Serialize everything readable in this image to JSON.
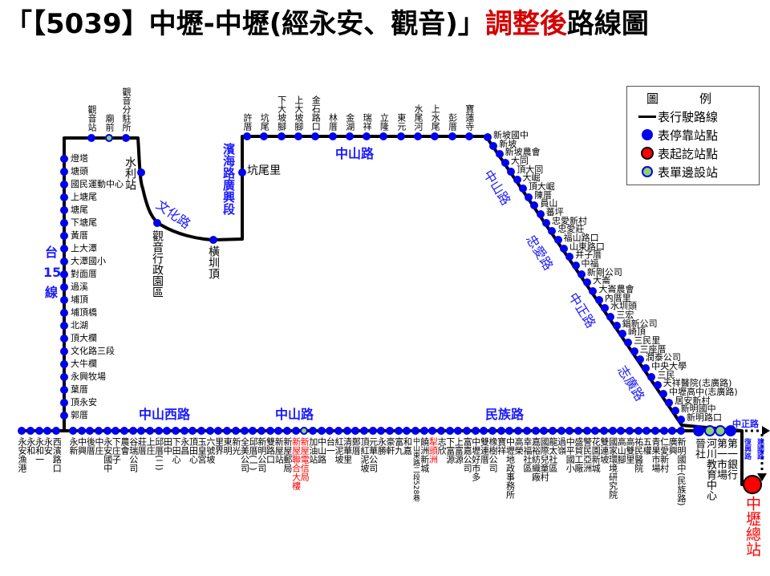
{
  "title": {
    "prefix": "「【5039】中壢-中壢(經永安、觀音)」",
    "highlight": "調整後",
    "suffix": "路線圖"
  },
  "colors": {
    "stop": "#0000ee",
    "terminal": "#ff0000",
    "one_side": "#8fd16a",
    "road_label": "#1a1aff",
    "highlight": "#d40000",
    "line": "#000000"
  },
  "legend": {
    "title_a": "圖",
    "title_b": "例",
    "items": [
      {
        "symbol": "route-line",
        "label": "表行駛路線"
      },
      {
        "symbol": "stop-dot",
        "label": "表停靠站點"
      },
      {
        "symbol": "terminal-dot",
        "label": "表起訖站點"
      },
      {
        "symbol": "one-side-dot",
        "label": "表單邊設站"
      }
    ]
  },
  "roads": {
    "tai15": [
      "台",
      "15",
      "線"
    ],
    "wenhua": "文化路",
    "binhai": "濱海路廣興段",
    "zhongshan_top": "中山路",
    "zhongshan_diag": "中山路",
    "zhongai": "忠愛路",
    "zhongzheng_diag": "中正路",
    "zhiguang": "志廣路",
    "zhongshan_west": "中山西路",
    "zhongshan_bottom": "中山路",
    "minzu": "民族路",
    "zhongzheng_end": "中正路",
    "fuxing": "復興路",
    "jianguo": "建國路"
  },
  "stops": {
    "top_left": [
      {
        "name": "觀音站"
      },
      {
        "name": "廟前",
        "type": "one-side"
      },
      {
        "name": "觀音分駐所"
      }
    ],
    "curve": [
      {
        "name": "水利站"
      },
      {
        "name": "觀音行政園區"
      },
      {
        "name": "橫圳頂"
      },
      {
        "name": "坑尾里"
      }
    ],
    "left_vertical": [
      {
        "name": "燈塔"
      },
      {
        "name": "塘頭"
      },
      {
        "name": "國民運動中心"
      },
      {
        "name": "上塘尾"
      },
      {
        "name": "塘尾"
      },
      {
        "name": "下塘尾"
      },
      {
        "name": "黃厝"
      },
      {
        "name": "上大潭"
      },
      {
        "name": "大潭國小"
      },
      {
        "name": "對面厝"
      },
      {
        "name": "過溪"
      },
      {
        "name": "埔頂"
      },
      {
        "name": "埔頂橋"
      },
      {
        "name": "北湖"
      },
      {
        "name": "頂大欄"
      },
      {
        "name": "文化路三段"
      },
      {
        "name": "大牛欄"
      },
      {
        "name": "永興牧場"
      },
      {
        "name": "葉厝"
      },
      {
        "name": "頂永安"
      },
      {
        "name": "郭厝"
      }
    ],
    "top": [
      {
        "name": "許厝"
      },
      {
        "name": "坑尾"
      },
      {
        "name": "下大坡腳"
      },
      {
        "name": "上大坡腳"
      },
      {
        "name": "金石路口"
      },
      {
        "name": "林厝"
      },
      {
        "name": "金湖"
      },
      {
        "name": "瑞祥"
      },
      {
        "name": "立隆"
      },
      {
        "name": "東元"
      },
      {
        "name": "水尾河"
      },
      {
        "name": "上水尾"
      },
      {
        "name": "彭厝"
      },
      {
        "name": "寶蓮寺"
      }
    ],
    "diagonal": [
      {
        "name": "新坡國中"
      },
      {
        "name": "新坡"
      },
      {
        "name": "新坡農會"
      },
      {
        "name": "大同"
      },
      {
        "name": "頂大同"
      },
      {
        "name": "大崛"
      },
      {
        "name": "頂大崛"
      },
      {
        "name": "陳厝"
      },
      {
        "name": "員山"
      },
      {
        "name": "蕃坪"
      },
      {
        "name": "忠愛新村"
      },
      {
        "name": "忠愛莊"
      },
      {
        "name": "福山路口"
      },
      {
        "name": "山東路口"
      },
      {
        "name": "井子厝"
      },
      {
        "name": "中福"
      },
      {
        "name": "新剛公司"
      },
      {
        "name": "大崙"
      },
      {
        "name": "大崙農會"
      },
      {
        "name": "內厝里"
      },
      {
        "name": "水圳頭"
      },
      {
        "name": "三宏"
      },
      {
        "name": "錩新公司"
      },
      {
        "name": "崎頂"
      },
      {
        "name": "三民里"
      },
      {
        "name": "三座厝"
      },
      {
        "name": "潤泰公司"
      },
      {
        "name": "中央大學"
      },
      {
        "name": "三民"
      },
      {
        "name": "天祥醫院(志廣路)"
      },
      {
        "name": "中壢高中(志廣路)"
      },
      {
        "name": "居安新村"
      },
      {
        "name": "新明國中"
      },
      {
        "name": "新明路口"
      }
    ],
    "bottom_west": [
      {
        "name": "永安漁港"
      },
      {
        "name": "永和"
      },
      {
        "name": "永和一"
      },
      {
        "name": "永安"
      },
      {
        "name": "西濱路口"
      }
    ],
    "bottom": [
      {
        "name": "永新"
      },
      {
        "name": "中興"
      },
      {
        "name": "後厝"
      },
      {
        "name": "中庄"
      },
      {
        "name": "永安國中"
      },
      {
        "name": "下庄子"
      },
      {
        "name": "農會"
      },
      {
        "name": "谷瑞公司"
      },
      {
        "name": "莊厝"
      },
      {
        "name": "上庄"
      },
      {
        "name": "邱厝(二)"
      },
      {
        "name": "田中"
      },
      {
        "name": "下田心"
      },
      {
        "name": "永昌"
      },
      {
        "name": "頂田心"
      },
      {
        "name": "玉皇宮"
      },
      {
        "name": "六號坡"
      },
      {
        "name": "里界"
      },
      {
        "name": "東明"
      },
      {
        "name": "新光"
      },
      {
        "name": "全美公司"
      },
      {
        "name": "邱厝(一)"
      },
      {
        "name": "新明公司"
      },
      {
        "name": "雙路口"
      },
      {
        "name": "新屋站"
      },
      {
        "name": "新屋郵局"
      },
      {
        "name": "新屋聯合大樓",
        "red": true
      },
      {
        "name": "新屋電信局",
        "red": true,
        "type": "one-side"
      },
      {
        "name": "加油站"
      },
      {
        "name": "中山路"
      },
      {
        "name": "台一"
      },
      {
        "name": "紅泥坡"
      },
      {
        "name": "清華里"
      },
      {
        "name": "鄭厝"
      },
      {
        "name": "頂紅泥坡"
      },
      {
        "name": "元華公司"
      },
      {
        "name": "永勝"
      },
      {
        "name": "豪軒"
      },
      {
        "name": "富九"
      },
      {
        "name": "和嘉"
      },
      {
        "name": "中山東路二段528巷"
      },
      {
        "name": "饒洲新城"
      },
      {
        "name": "犁頭洲",
        "red": true
      },
      {
        "name": "志欣"
      },
      {
        "name": "下富源"
      },
      {
        "name": "上富源"
      },
      {
        "name": "富嘉公司"
      },
      {
        "name": "中壢好市多"
      },
      {
        "name": "雙連厝"
      },
      {
        "name": "橡樹公司"
      },
      {
        "name": "寶祥"
      },
      {
        "name": "中壢地政事務所"
      },
      {
        "name": "高榮"
      },
      {
        "name": "幸福社區"
      },
      {
        "name": "嘉裕紡織廠"
      },
      {
        "name": "國際兒童村"
      },
      {
        "name": "龍太社區"
      },
      {
        "name": "過嶺"
      },
      {
        "name": "中平國小"
      },
      {
        "name": "盛貿工廠"
      },
      {
        "name": "警民亞洲"
      },
      {
        "name": "花園新城"
      },
      {
        "name": "雙連坡"
      },
      {
        "name": "國家環境研究院"
      },
      {
        "name": "高山腳"
      },
      {
        "name": "高雙里"
      },
      {
        "name": "祐民醫院"
      },
      {
        "name": "五權"
      },
      {
        "name": "青果市場"
      },
      {
        "name": "仁愛新村"
      },
      {
        "name": "廣興"
      },
      {
        "name": "新明國中(民族路)"
      }
    ],
    "east_end": [
      {
        "name": "晉社"
      },
      {
        "name": "河川教育中心",
        "type": "one-side"
      },
      {
        "name": "第一市場",
        "type": "one-side"
      },
      {
        "name": "第一銀行"
      }
    ],
    "terminal": {
      "name": "中壢總站",
      "type": "terminal"
    }
  }
}
